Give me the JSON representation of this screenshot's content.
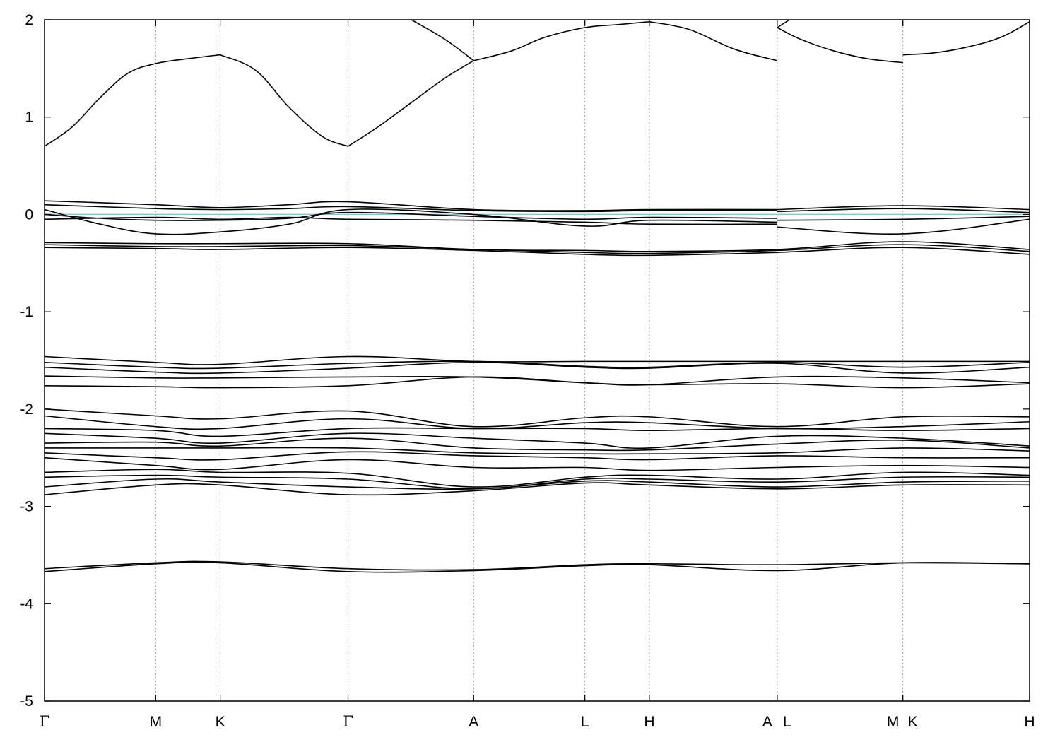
{
  "chart_data": {
    "type": "line",
    "title": "",
    "xlabel": "",
    "ylabel": "",
    "ylim": [
      -5,
      2
    ],
    "yticks": [
      -5,
      -4,
      -3,
      -2,
      -1,
      0,
      1,
      2
    ],
    "grid": "vertical dotted lines at high-symmetry points",
    "legend": "none",
    "kpoints": [
      {
        "label": "Γ",
        "x": 0.0
      },
      {
        "label": "M",
        "x": 1.0
      },
      {
        "label": "K",
        "x": 1.58
      },
      {
        "label": "Γ",
        "x": 2.73
      },
      {
        "label": "A",
        "x": 3.86
      },
      {
        "label": "L",
        "x": 4.86
      },
      {
        "label": "H",
        "x": 5.44
      },
      {
        "label": "A",
        "x": 6.59
      },
      {
        "label": "L",
        "x": 6.59
      },
      {
        "label": "M",
        "x": 7.72
      },
      {
        "label": "K",
        "x": 7.72
      },
      {
        "label": "H",
        "x": 8.86
      }
    ],
    "xlabels_drawn": [
      "Γ",
      "M",
      "K",
      "Γ",
      "A",
      "L",
      "H",
      "A",
      "L",
      "M",
      "K",
      "H"
    ],
    "fermi_level": {
      "value": 0,
      "color": "#7fc8d8"
    },
    "line_color": "#000000",
    "series": [
      {
        "segment": 0,
        "x": [
          0.0,
          0.25,
          0.5,
          0.75,
          1.0,
          1.29,
          1.58
        ],
        "y": [
          0.7,
          0.9,
          1.2,
          1.45,
          1.55,
          1.6,
          1.64
        ]
      },
      {
        "segment": 1,
        "x": [
          1.58,
          1.9,
          2.2,
          2.5,
          2.73
        ],
        "y": [
          1.64,
          1.48,
          1.1,
          0.8,
          0.7
        ]
      },
      {
        "segment": 2,
        "x": [
          2.73,
          3.0,
          3.3,
          3.6,
          3.86
        ],
        "y": [
          0.7,
          0.9,
          1.15,
          1.4,
          1.58
        ]
      },
      {
        "segment": 3,
        "x": [
          3.3,
          3.6,
          3.86
        ],
        "y": [
          2.0,
          1.8,
          1.58
        ]
      },
      {
        "segment": 4,
        "x": [
          3.86,
          4.2,
          4.5,
          4.86,
          5.15,
          5.44
        ],
        "y": [
          1.58,
          1.68,
          1.82,
          1.92,
          1.95,
          1.98
        ]
      },
      {
        "segment": 5,
        "x": [
          5.44,
          5.8,
          6.2,
          6.59
        ],
        "y": [
          1.98,
          1.9,
          1.7,
          1.58
        ]
      },
      {
        "segment": 6,
        "x": [
          6.59,
          6.8,
          7.1,
          7.4,
          7.72
        ],
        "y": [
          1.92,
          1.8,
          1.68,
          1.6,
          1.56
        ]
      },
      {
        "segment": 7,
        "x": [
          6.59,
          6.7
        ],
        "y": [
          1.92,
          2.0
        ]
      },
      {
        "segment": 8,
        "x": [
          7.72,
          8.0,
          8.3,
          8.6,
          8.86
        ],
        "y": [
          1.64,
          1.66,
          1.72,
          1.82,
          1.98
        ]
      },
      {
        "segment": 9,
        "x": [
          0.0,
          1.0,
          1.58,
          2.2,
          2.73,
          3.86,
          4.86,
          5.44,
          6.59
        ],
        "y": [
          0.14,
          0.1,
          0.07,
          0.1,
          0.13,
          0.05,
          0.04,
          0.05,
          0.05
        ]
      },
      {
        "segment": 10,
        "x": [
          0.0,
          1.0,
          1.58,
          2.2,
          2.73,
          3.86,
          4.86,
          5.44,
          6.59
        ],
        "y": [
          0.1,
          0.06,
          0.05,
          0.06,
          0.08,
          0.04,
          0.03,
          0.04,
          0.04
        ]
      },
      {
        "segment": 11,
        "x": [
          0.0,
          0.5,
          1.0,
          1.58,
          2.2,
          2.73,
          3.86,
          4.86,
          5.44,
          6.59
        ],
        "y": [
          0.05,
          -0.1,
          -0.2,
          -0.18,
          -0.1,
          0.05,
          0.0,
          -0.12,
          -0.06,
          -0.08
        ]
      },
      {
        "segment": 12,
        "x": [
          0.0,
          0.5,
          1.0,
          1.58,
          2.2,
          2.73,
          3.86,
          4.86,
          5.44,
          6.59
        ],
        "y": [
          0.0,
          -0.04,
          -0.06,
          -0.06,
          -0.04,
          0.02,
          -0.02,
          -0.05,
          -0.03,
          -0.04
        ]
      },
      {
        "segment": 13,
        "x": [
          0.0,
          1.0,
          1.58,
          2.2,
          2.73,
          3.86,
          4.86,
          5.44,
          6.59
        ],
        "y": [
          -0.05,
          -0.03,
          -0.05,
          -0.03,
          -0.05,
          -0.06,
          -0.08,
          -0.1,
          -0.1
        ]
      },
      {
        "segment": 14,
        "x": [
          6.59,
          7.72,
          8.86
        ],
        "y": [
          0.05,
          0.09,
          0.05
        ]
      },
      {
        "segment": 15,
        "x": [
          6.59,
          7.72,
          8.86
        ],
        "y": [
          0.03,
          0.06,
          0.02
        ]
      },
      {
        "segment": 16,
        "x": [
          6.59,
          7.72,
          8.86
        ],
        "y": [
          -0.13,
          -0.2,
          -0.05
        ]
      },
      {
        "segment": 17,
        "x": [
          6.59,
          7.72,
          8.86
        ],
        "y": [
          -0.06,
          -0.05,
          -0.02
        ]
      },
      {
        "segment": 18,
        "x": [
          0.0,
          1.0,
          1.58,
          2.73,
          3.86,
          4.86,
          5.44,
          6.59,
          7.72,
          8.86
        ],
        "y": [
          -0.29,
          -0.3,
          -0.3,
          -0.3,
          -0.36,
          -0.37,
          -0.38,
          -0.36,
          -0.28,
          -0.36
        ]
      },
      {
        "segment": 19,
        "x": [
          0.0,
          1.0,
          1.58,
          2.73,
          3.86,
          4.86,
          5.44,
          6.59,
          7.72,
          8.86
        ],
        "y": [
          -0.31,
          -0.33,
          -0.33,
          -0.32,
          -0.36,
          -0.39,
          -0.4,
          -0.37,
          -0.31,
          -0.38
        ]
      },
      {
        "segment": 20,
        "x": [
          0.0,
          1.0,
          1.58,
          2.73,
          3.86,
          4.86,
          5.44,
          6.59,
          7.72,
          8.86
        ],
        "y": [
          -0.34,
          -0.35,
          -0.36,
          -0.34,
          -0.37,
          -0.41,
          -0.42,
          -0.39,
          -0.34,
          -0.41
        ]
      },
      {
        "segment": 21,
        "x": [
          0.0,
          1.0,
          1.58,
          2.73,
          3.86,
          4.86,
          5.44,
          6.59,
          7.72,
          8.86
        ],
        "y": [
          -1.46,
          -1.52,
          -1.54,
          -1.46,
          -1.51,
          -1.51,
          -1.51,
          -1.51,
          -1.51,
          -1.51
        ]
      },
      {
        "segment": 22,
        "x": [
          0.0,
          1.0,
          1.58,
          2.73,
          3.86,
          4.86,
          5.44,
          6.59,
          7.72,
          8.86
        ],
        "y": [
          -1.52,
          -1.57,
          -1.58,
          -1.53,
          -1.51,
          -1.56,
          -1.57,
          -1.52,
          -1.57,
          -1.52
        ]
      },
      {
        "segment": 23,
        "x": [
          0.0,
          1.0,
          1.58,
          2.73,
          3.86,
          4.86,
          5.44,
          6.59,
          7.72,
          8.86
        ],
        "y": [
          -1.57,
          -1.62,
          -1.63,
          -1.58,
          -1.52,
          -1.57,
          -1.58,
          -1.53,
          -1.63,
          -1.57
        ]
      },
      {
        "segment": 24,
        "x": [
          0.0,
          1.0,
          1.58,
          2.73,
          3.86,
          4.86,
          5.44,
          6.59,
          7.72,
          8.86
        ],
        "y": [
          -1.66,
          -1.68,
          -1.68,
          -1.67,
          -1.67,
          -1.73,
          -1.75,
          -1.67,
          -1.68,
          -1.73
        ]
      },
      {
        "segment": 25,
        "x": [
          0.0,
          1.0,
          1.58,
          2.73,
          3.86,
          4.86,
          5.44,
          6.59,
          7.72,
          8.86
        ],
        "y": [
          -1.76,
          -1.77,
          -1.78,
          -1.76,
          -1.67,
          -1.73,
          -1.75,
          -1.74,
          -1.78,
          -1.74
        ]
      },
      {
        "segment": 26,
        "x": [
          0.0,
          1.0,
          1.58,
          2.73,
          3.86,
          4.86,
          5.44,
          6.59,
          7.72,
          8.86
        ],
        "y": [
          -2.0,
          -2.07,
          -2.1,
          -2.02,
          -2.18,
          -2.09,
          -2.08,
          -2.18,
          -2.08,
          -2.08
        ]
      },
      {
        "segment": 27,
        "x": [
          0.0,
          1.0,
          1.58,
          2.73,
          3.86,
          4.86,
          5.44,
          6.59,
          7.72,
          8.86
        ],
        "y": [
          -2.07,
          -2.18,
          -2.2,
          -2.1,
          -2.2,
          -2.14,
          -2.14,
          -2.2,
          -2.18,
          -2.13
        ]
      },
      {
        "segment": 28,
        "x": [
          0.0,
          1.0,
          1.58,
          2.73,
          3.86,
          4.86,
          5.44,
          6.59,
          7.72,
          8.86
        ],
        "y": [
          -2.2,
          -2.22,
          -2.28,
          -2.2,
          -2.2,
          -2.2,
          -2.22,
          -2.2,
          -2.22,
          -2.2
        ]
      },
      {
        "segment": 29,
        "x": [
          0.0,
          1.0,
          1.58,
          2.73,
          3.86,
          4.86,
          5.44,
          6.59,
          7.72,
          8.86
        ],
        "y": [
          -2.25,
          -2.3,
          -2.35,
          -2.25,
          -2.3,
          -2.35,
          -2.4,
          -2.28,
          -2.3,
          -2.38
        ]
      },
      {
        "segment": 30,
        "x": [
          0.0,
          1.0,
          1.58,
          2.73,
          3.86,
          4.86,
          5.44,
          6.59,
          7.72,
          8.86
        ],
        "y": [
          -2.35,
          -2.34,
          -2.38,
          -2.3,
          -2.4,
          -2.42,
          -2.42,
          -2.36,
          -2.32,
          -2.4
        ]
      },
      {
        "segment": 31,
        "x": [
          0.0,
          1.0,
          1.58,
          2.73,
          3.86,
          4.86,
          5.44,
          6.59,
          7.72,
          8.86
        ],
        "y": [
          -2.4,
          -2.4,
          -2.4,
          -2.4,
          -2.45,
          -2.46,
          -2.46,
          -2.45,
          -2.4,
          -2.43
        ]
      },
      {
        "segment": 32,
        "x": [
          0.0,
          1.0,
          1.58,
          2.73,
          3.86,
          4.86,
          5.44,
          6.59,
          7.72,
          8.86
        ],
        "y": [
          -2.45,
          -2.5,
          -2.52,
          -2.44,
          -2.48,
          -2.5,
          -2.52,
          -2.48,
          -2.5,
          -2.5
        ]
      },
      {
        "segment": 33,
        "x": [
          0.0,
          1.0,
          1.58,
          2.73,
          3.86,
          4.86,
          5.44,
          6.59,
          7.72,
          8.86
        ],
        "y": [
          -2.5,
          -2.58,
          -2.62,
          -2.52,
          -2.6,
          -2.6,
          -2.63,
          -2.6,
          -2.58,
          -2.6
        ]
      },
      {
        "segment": 34,
        "x": [
          0.0,
          1.0,
          1.58,
          2.73,
          3.86,
          4.86,
          5.44,
          6.59,
          7.72,
          8.86
        ],
        "y": [
          -2.65,
          -2.62,
          -2.65,
          -2.66,
          -2.8,
          -2.7,
          -2.68,
          -2.72,
          -2.65,
          -2.68
        ]
      },
      {
        "segment": 35,
        "x": [
          0.0,
          1.0,
          1.58,
          2.73,
          3.86,
          4.86,
          5.44,
          6.59,
          7.72,
          8.86
        ],
        "y": [
          -2.7,
          -2.68,
          -2.7,
          -2.72,
          -2.82,
          -2.72,
          -2.72,
          -2.75,
          -2.7,
          -2.7
        ]
      },
      {
        "segment": 36,
        "x": [
          0.0,
          1.0,
          1.58,
          2.73,
          3.86,
          4.86,
          5.44,
          6.59,
          7.72,
          8.86
        ],
        "y": [
          -2.8,
          -2.72,
          -2.75,
          -2.8,
          -2.82,
          -2.74,
          -2.75,
          -2.8,
          -2.75,
          -2.74
        ]
      },
      {
        "segment": 37,
        "x": [
          0.0,
          1.0,
          1.58,
          2.73,
          3.86,
          4.86,
          5.44,
          6.59,
          7.72,
          8.86
        ],
        "y": [
          -2.88,
          -2.78,
          -2.78,
          -2.88,
          -2.84,
          -2.76,
          -2.78,
          -2.82,
          -2.78,
          -2.78
        ]
      },
      {
        "segment": 38,
        "x": [
          0.0,
          1.0,
          1.58,
          2.73,
          3.86,
          4.86,
          5.44,
          6.59,
          7.72,
          8.86
        ],
        "y": [
          -3.64,
          -3.58,
          -3.57,
          -3.64,
          -3.65,
          -3.6,
          -3.59,
          -3.6,
          -3.58,
          -3.59
        ]
      },
      {
        "segment": 39,
        "x": [
          0.0,
          1.0,
          1.58,
          2.73,
          3.86,
          4.86,
          5.44,
          6.59,
          7.72,
          8.86
        ],
        "y": [
          -3.67,
          -3.59,
          -3.58,
          -3.67,
          -3.66,
          -3.61,
          -3.6,
          -3.66,
          -3.58,
          -3.59
        ]
      }
    ]
  }
}
